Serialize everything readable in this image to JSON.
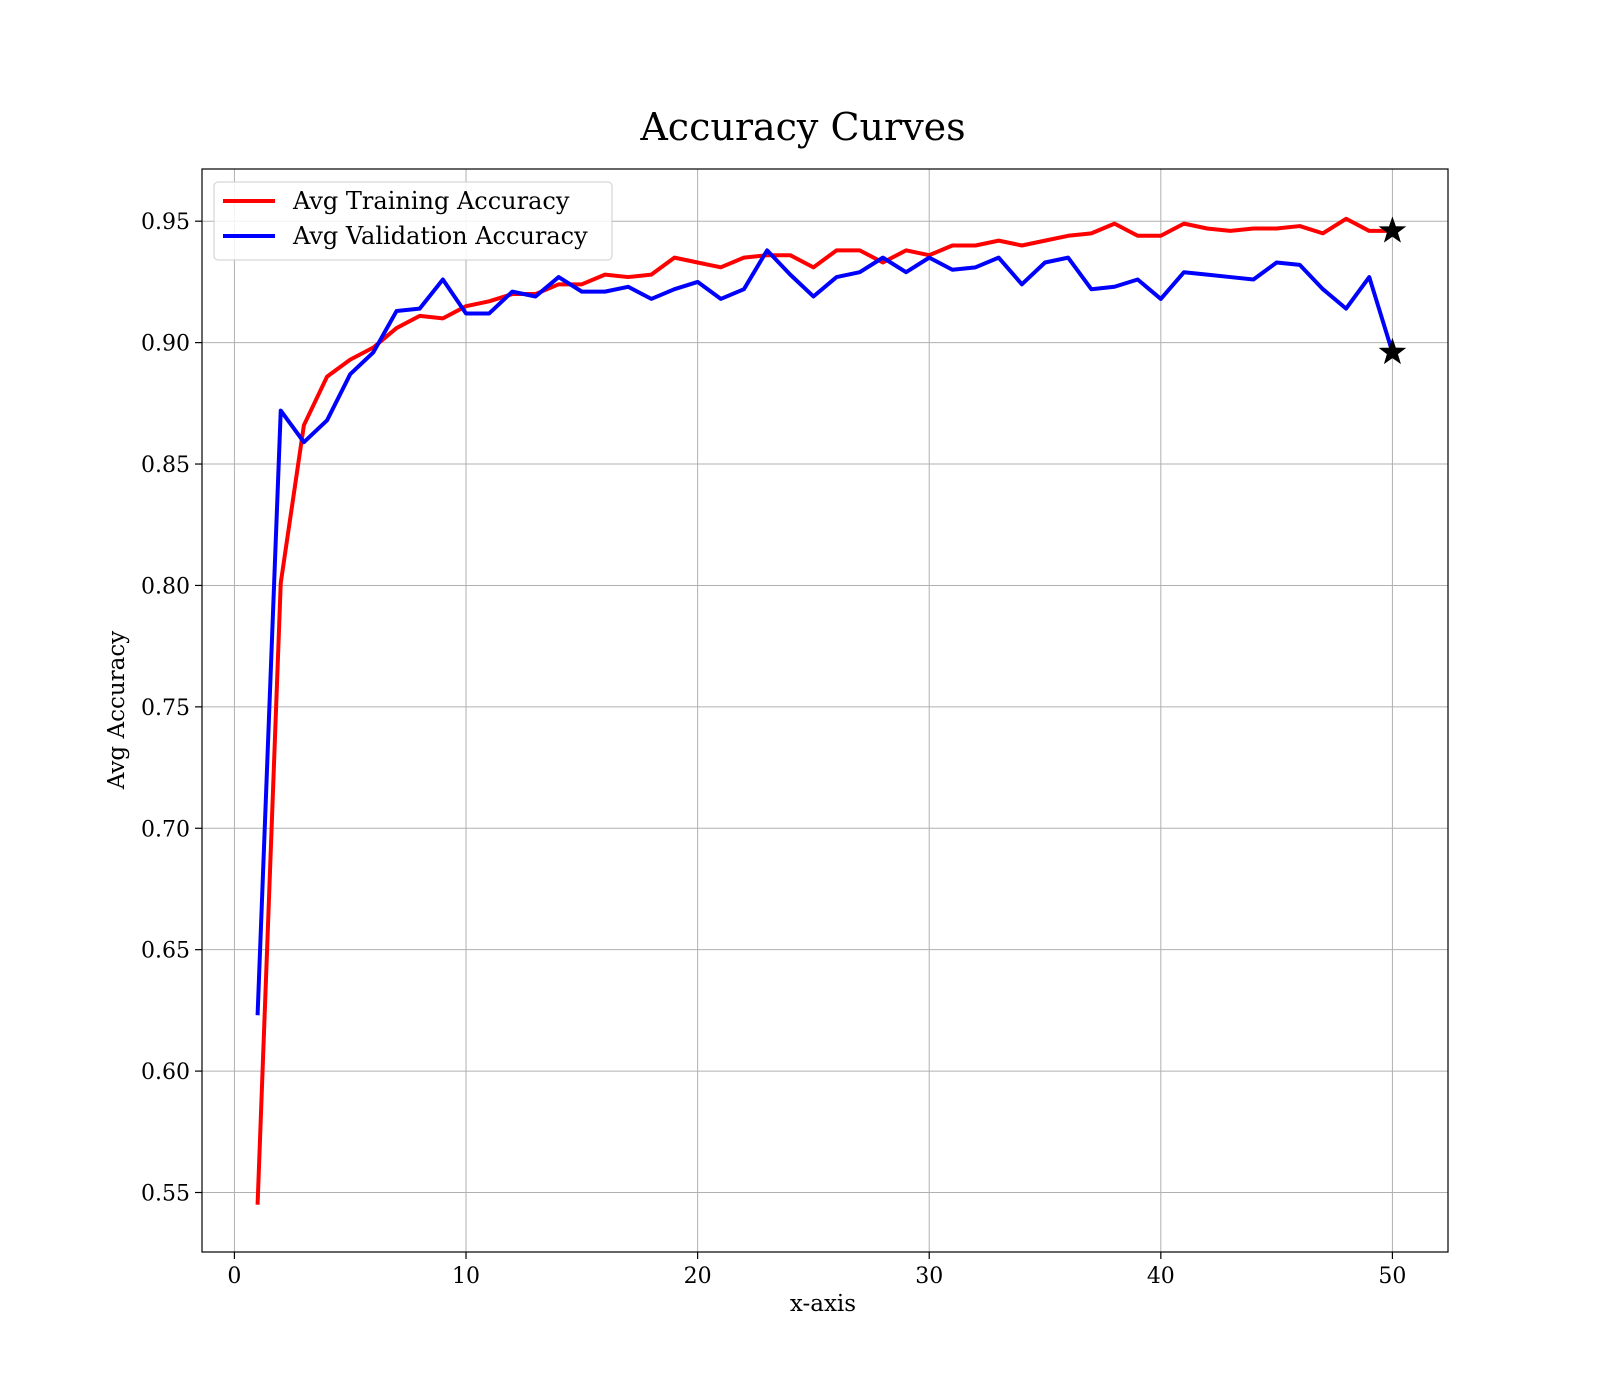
{
  "chart_data": {
    "type": "line",
    "title": "Accuracy Curves",
    "xlabel": "x-axis",
    "ylabel": "Avg Accuracy",
    "xlim": [
      -1.4,
      52.4
    ],
    "ylim": [
      0.5255,
      0.9715
    ],
    "xticks": [
      0,
      10,
      20,
      30,
      40,
      50
    ],
    "yticks": [
      0.55,
      0.6,
      0.65,
      0.7,
      0.75,
      0.8,
      0.85,
      0.9,
      0.95
    ],
    "ytick_labels": [
      "0.55",
      "0.60",
      "0.65",
      "0.70",
      "0.75",
      "0.80",
      "0.85",
      "0.90",
      "0.95"
    ],
    "grid": true,
    "legend_position": "top-left",
    "x": [
      1,
      2,
      3,
      4,
      5,
      6,
      7,
      8,
      9,
      10,
      11,
      12,
      13,
      14,
      15,
      16,
      17,
      18,
      19,
      20,
      21,
      22,
      23,
      24,
      25,
      26,
      27,
      28,
      29,
      30,
      31,
      32,
      33,
      34,
      35,
      36,
      37,
      38,
      39,
      40,
      41,
      42,
      43,
      44,
      45,
      46,
      47,
      48,
      49,
      50
    ],
    "series": [
      {
        "name": "Avg Training Accuracy",
        "color": "#ff0000",
        "values": [
          0.545,
          0.801,
          0.866,
          0.886,
          0.893,
          0.898,
          0.906,
          0.911,
          0.91,
          0.915,
          0.917,
          0.92,
          0.92,
          0.924,
          0.924,
          0.928,
          0.927,
          0.928,
          0.935,
          0.933,
          0.931,
          0.935,
          0.936,
          0.936,
          0.931,
          0.938,
          0.938,
          0.933,
          0.938,
          0.936,
          0.94,
          0.94,
          0.942,
          0.94,
          0.942,
          0.944,
          0.945,
          0.949,
          0.944,
          0.944,
          0.949,
          0.947,
          0.946,
          0.947,
          0.947,
          0.948,
          0.945,
          0.951,
          0.946,
          0.946
        ]
      },
      {
        "name": "Avg Validation Accuracy",
        "color": "#0000ff",
        "values": [
          0.623,
          0.872,
          0.859,
          0.868,
          0.887,
          0.896,
          0.913,
          0.914,
          0.926,
          0.912,
          0.912,
          0.921,
          0.919,
          0.927,
          0.921,
          0.921,
          0.923,
          0.918,
          0.922,
          0.925,
          0.918,
          0.922,
          0.938,
          0.928,
          0.919,
          0.927,
          0.929,
          0.935,
          0.929,
          0.935,
          0.93,
          0.931,
          0.935,
          0.924,
          0.933,
          0.935,
          0.922,
          0.923,
          0.926,
          0.918,
          0.929,
          0.928,
          0.927,
          0.926,
          0.933,
          0.932,
          0.922,
          0.914,
          0.927,
          0.896
        ]
      }
    ],
    "markers": [
      {
        "x": 50,
        "y": 0.946,
        "shape": "star",
        "color": "#000000"
      },
      {
        "x": 50,
        "y": 0.896,
        "shape": "star",
        "color": "#000000"
      }
    ]
  }
}
